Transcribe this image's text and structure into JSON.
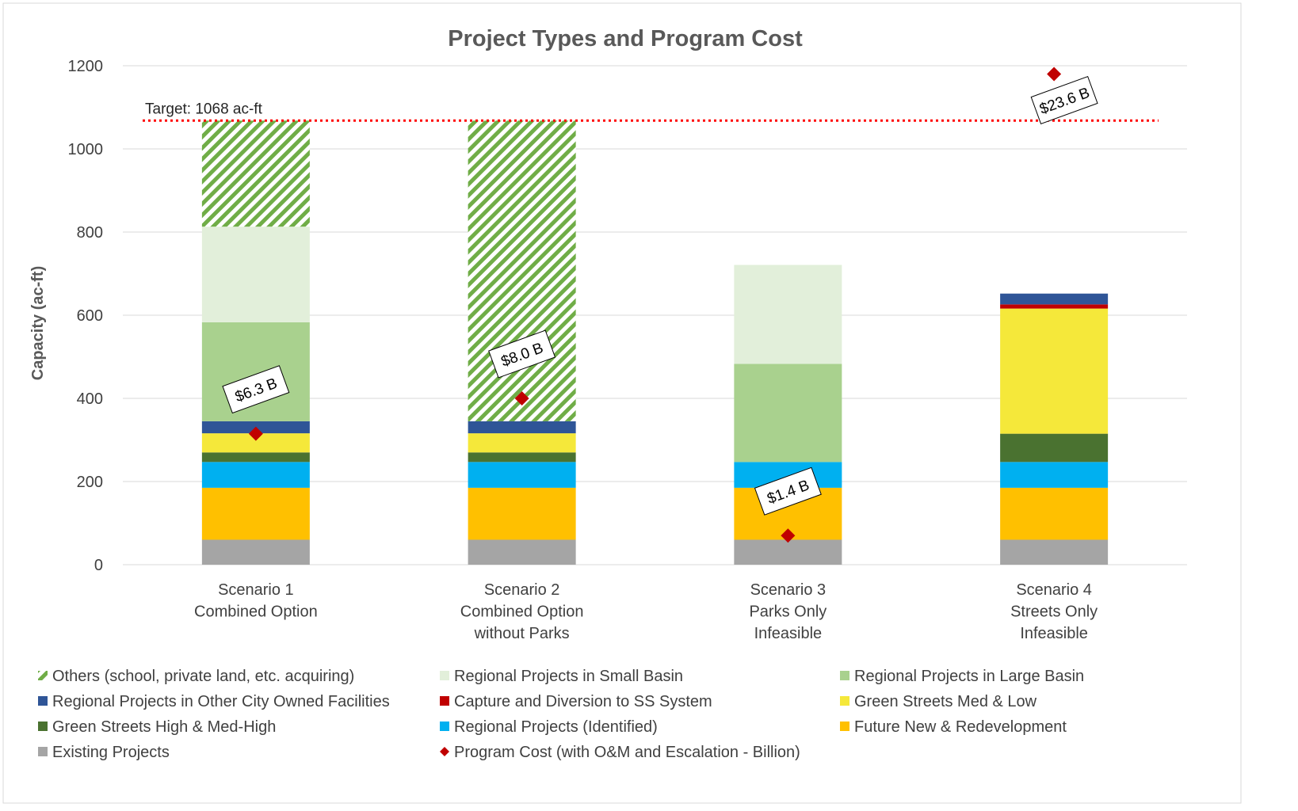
{
  "chart_data": {
    "type": "bar",
    "stacked": true,
    "title": "Project Types and Program Cost",
    "ylabel": "Capacity (ac-ft)",
    "categories": [
      "Scenario 1\nCombined Option",
      "Scenario 2\nCombined Option\nwithout Parks",
      "Scenario 3\nParks Only\nInfeasible",
      "Scenario 4\nStreets Only\nInfeasible"
    ],
    "ylim": [
      0,
      1200
    ],
    "yticks": [
      0,
      200,
      400,
      600,
      800,
      1000,
      1200
    ],
    "y2lim": [
      0,
      24
    ],
    "grid": true,
    "legend": "bottom",
    "target": {
      "label": "Target: 1068 ac-ft",
      "value": 1068,
      "color": "#ff0000"
    },
    "series": [
      {
        "name": "Others (school, private land, etc. acquiring)",
        "color": "#70ad47",
        "hatch": true,
        "values": [
          255,
          723,
          0,
          0
        ]
      },
      {
        "name": "Regional Projects in Small Basin",
        "color": "#e2efda",
        "values": [
          230,
          0,
          238,
          0
        ]
      },
      {
        "name": "Regional Projects in Large Basin",
        "color": "#a9d18e",
        "values": [
          238,
          0,
          236,
          0
        ]
      },
      {
        "name": "Regional Projects in Other City Owned Facilities",
        "color": "#2f5597",
        "values": [
          29,
          29,
          0,
          26
        ]
      },
      {
        "name": "Capture and Diversion to SS System",
        "color": "#c00000",
        "values": [
          0,
          0,
          0,
          10
        ]
      },
      {
        "name": "Green Streets Med & Low",
        "color": "#f5e83a",
        "values": [
          46,
          46,
          0,
          301
        ]
      },
      {
        "name": "Green Streets High & Med-High",
        "color": "#4a7230",
        "values": [
          23,
          23,
          0,
          68
        ]
      },
      {
        "name": "Regional Projects (Identified)",
        "color": "#00b0f0",
        "values": [
          62,
          62,
          62,
          62
        ]
      },
      {
        "name": "Future New & Redevelopment",
        "color": "#ffc000",
        "values": [
          125,
          125,
          125,
          125
        ]
      },
      {
        "name": "Existing Projects",
        "color": "#a5a5a5",
        "values": [
          60,
          60,
          60,
          60
        ]
      },
      {
        "name": "Program Cost (with O&M and Escalation - Billion)",
        "color": "#c00000",
        "type": "scatter",
        "marker": "diamond",
        "axis": "y2",
        "values": [
          6.3,
          8.0,
          1.4,
          23.6
        ],
        "value_labels": [
          "$6.3 B",
          "$8.0 B",
          "$1.4 B",
          "$23.6 B"
        ]
      }
    ]
  }
}
